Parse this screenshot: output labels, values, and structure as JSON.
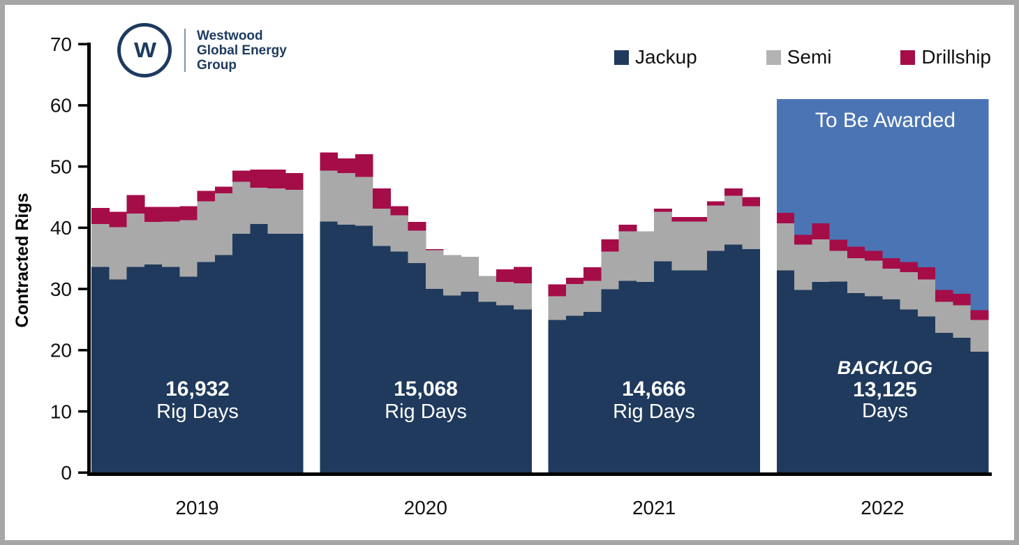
{
  "logo": {
    "mark": "W",
    "lines": [
      "Westwood",
      "Global Energy",
      "Group"
    ]
  },
  "legend": {
    "items": [
      {
        "label": "Jackup",
        "color": "#1f3a5c"
      },
      {
        "label": "Semi",
        "color": "#b3b3b3"
      },
      {
        "label": "Drillship",
        "color": "#a50d49"
      }
    ]
  },
  "annotations": {
    "y2019": {
      "value": "16,932",
      "unit": "Rig Days"
    },
    "y2020": {
      "value": "15,068",
      "unit": "Rig Days"
    },
    "y2021": {
      "value": "14,666",
      "unit": "Rig Days"
    },
    "backlog": {
      "title": "BACKLOG",
      "value": "13,125",
      "unit": "Days"
    },
    "to_be_awarded": "To Be Awarded"
  },
  "chart_data": {
    "type": "area",
    "subtype": "stacked-step-monthly",
    "title": "",
    "ylabel": "Contracted Rigs",
    "xlabel": "",
    "ylim": [
      0,
      70
    ],
    "yticks": [
      0,
      10,
      20,
      30,
      40,
      50,
      60,
      70
    ],
    "grid": false,
    "legend_position": "top-right",
    "categories": [
      "2019",
      "2020",
      "2021",
      "2022"
    ],
    "colors": {
      "jackup": "#1f3a5c",
      "semi": "#a9a9a9",
      "drillship": "#a50d49",
      "to_be_awarded": "#4b74b4",
      "axis": "#000000",
      "frame": "#a6a6a6"
    },
    "years": [
      {
        "label": "2019",
        "jackup": [
          33.6,
          31.5,
          33.6,
          34.0,
          33.6,
          32.0,
          34.4,
          35.5,
          39.0,
          40.6,
          39.0,
          39.0
        ],
        "semi": [
          7.0,
          8.6,
          8.7,
          6.9,
          7.4,
          9.2,
          9.9,
          10.1,
          8.5,
          5.9,
          7.4,
          7.2
        ],
        "drillship": [
          2.6,
          2.5,
          3.0,
          2.5,
          2.4,
          2.3,
          1.7,
          1.1,
          1.8,
          3.0,
          3.1,
          2.7
        ]
      },
      {
        "label": "2020",
        "jackup": [
          41.0,
          40.5,
          40.3,
          37.0,
          36.1,
          34.2,
          30.0,
          28.9,
          29.5,
          27.9,
          27.3,
          26.6
        ],
        "semi": [
          8.3,
          8.4,
          8.0,
          6.1,
          5.9,
          5.3,
          6.3,
          6.6,
          5.7,
          4.2,
          3.8,
          4.3
        ],
        "drillship": [
          3.0,
          2.4,
          3.7,
          3.3,
          1.5,
          1.4,
          0.2,
          0.0,
          0.0,
          0.0,
          2.1,
          2.7
        ]
      },
      {
        "label": "2021",
        "jackup": [
          24.9,
          25.6,
          26.2,
          29.9,
          31.3,
          31.1,
          34.5,
          33.0,
          33.0,
          36.2,
          37.2,
          36.5
        ],
        "semi": [
          3.9,
          5.2,
          5.1,
          6.2,
          8.1,
          8.3,
          8.1,
          8.0,
          8.0,
          7.4,
          8.0,
          7.0
        ],
        "drillship": [
          1.9,
          1.0,
          2.2,
          2.0,
          1.1,
          0.0,
          0.5,
          0.7,
          0.7,
          0.7,
          1.2,
          1.5
        ]
      },
      {
        "label": "2022",
        "jackup": [
          33.0,
          29.8,
          31.1,
          31.2,
          29.3,
          28.8,
          28.3,
          26.6,
          25.5,
          22.8,
          22.0,
          19.7
        ],
        "semi": [
          7.7,
          7.4,
          7.0,
          5.0,
          5.7,
          5.8,
          5.0,
          6.1,
          6.0,
          5.1,
          5.3,
          5.2
        ],
        "drillship": [
          1.7,
          1.6,
          2.6,
          1.8,
          1.9,
          1.6,
          1.7,
          1.7,
          2.0,
          1.9,
          1.9,
          1.6
        ],
        "to_be_awarded_top": 61
      }
    ]
  }
}
